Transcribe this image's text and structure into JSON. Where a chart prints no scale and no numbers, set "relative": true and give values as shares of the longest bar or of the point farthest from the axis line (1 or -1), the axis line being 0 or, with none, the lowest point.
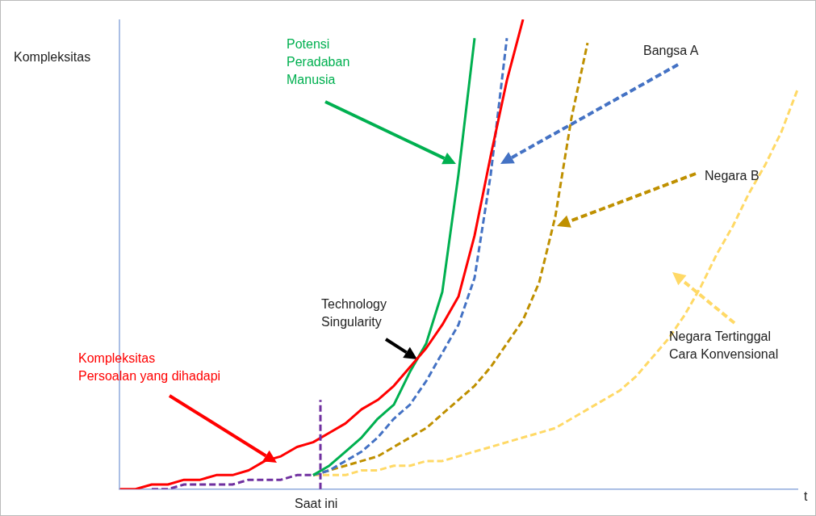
{
  "chart_data": {
    "type": "line",
    "relative": true,
    "xlabel": "t",
    "ylabel": "Kompleksitas",
    "marker": "none",
    "categories": [
      null,
      null,
      null,
      null,
      null,
      null,
      null,
      null,
      null,
      null,
      null,
      null,
      null,
      null,
      null,
      null,
      null,
      null,
      null,
      null,
      null,
      null,
      null,
      null,
      null,
      null,
      null,
      null,
      null,
      null,
      null,
      null,
      null,
      null,
      null,
      null,
      null,
      null,
      null,
      null,
      null,
      null,
      null
    ],
    "series": [
      {
        "name": "Kompleksitas Persoalan yang dihadapi",
        "color": "#ff0000",
        "line_style": "solid",
        "values": [
          0.0,
          0.0,
          0.01,
          0.01,
          0.02,
          0.02,
          0.03,
          0.03,
          0.04,
          0.06,
          0.07,
          0.09,
          0.1,
          0.12,
          0.14,
          0.17,
          0.19,
          0.22,
          0.26,
          0.3,
          0.35,
          0.41,
          0.54,
          0.71,
          0.87,
          1.0,
          null,
          null,
          null,
          null,
          null,
          null,
          null,
          null,
          null,
          null,
          null,
          null,
          null,
          null,
          null,
          null,
          null
        ]
      },
      {
        "name": "Potensi Peradaban Manusia",
        "color": "#00b050",
        "line_style": "solid",
        "values": [
          null,
          null,
          null,
          null,
          null,
          null,
          null,
          null,
          null,
          null,
          null,
          null,
          0.03,
          0.05,
          0.08,
          0.11,
          0.15,
          0.18,
          0.25,
          0.31,
          0.42,
          0.67,
          0.96,
          null,
          null,
          null,
          null,
          null,
          null,
          null,
          null,
          null,
          null,
          null,
          null,
          null,
          null,
          null,
          null,
          null,
          null,
          null,
          null
        ]
      },
      {
        "name": "Bangsa A",
        "color": "#4472c4",
        "line_style": "dashed",
        "values": [
          null,
          null,
          null,
          null,
          null,
          null,
          null,
          null,
          null,
          null,
          null,
          null,
          0.03,
          0.04,
          0.06,
          0.08,
          0.11,
          0.15,
          0.18,
          0.23,
          0.29,
          0.35,
          0.45,
          0.67,
          0.96,
          null,
          null,
          null,
          null,
          null,
          null,
          null,
          null,
          null,
          null,
          null,
          null,
          null,
          null,
          null,
          null,
          null,
          null
        ]
      },
      {
        "name": "Negara B",
        "color": "#bf9000",
        "line_style": "dashed",
        "values": [
          null,
          null,
          null,
          null,
          null,
          null,
          null,
          null,
          null,
          null,
          null,
          null,
          0.03,
          0.04,
          0.05,
          0.06,
          0.07,
          0.09,
          0.11,
          0.13,
          0.16,
          0.19,
          0.22,
          0.26,
          0.31,
          0.36,
          0.44,
          0.58,
          0.79,
          0.95,
          null,
          null,
          null,
          null,
          null,
          null,
          null,
          null,
          null,
          null,
          null,
          null,
          null
        ]
      },
      {
        "name": "Negara Tertinggal Cara Konvensional",
        "color": "#ffd966",
        "line_style": "dashed",
        "values": [
          null,
          null,
          null,
          null,
          null,
          null,
          null,
          null,
          null,
          null,
          null,
          null,
          0.03,
          0.03,
          0.03,
          0.04,
          0.04,
          0.05,
          0.05,
          0.06,
          0.06,
          0.07,
          0.08,
          0.09,
          0.1,
          0.11,
          0.12,
          0.13,
          0.15,
          0.17,
          0.19,
          0.21,
          0.24,
          0.28,
          0.32,
          0.37,
          0.43,
          0.5,
          0.56,
          0.63,
          0.69,
          0.76,
          0.85
        ]
      },
      {
        "color": "#7030a0",
        "line_style": "dashed",
        "values": [
          null,
          null,
          0.0,
          0.0,
          0.01,
          0.01,
          0.01,
          0.01,
          0.02,
          0.02,
          0.02,
          0.03,
          0.03,
          null,
          null,
          null,
          null,
          null,
          null,
          null,
          null,
          null,
          null,
          null,
          null,
          null,
          null,
          null,
          null,
          null,
          null,
          null,
          null,
          null,
          null,
          null,
          null,
          null,
          null,
          null,
          null,
          null,
          null
        ]
      }
    ],
    "annotations": [
      "Technology Singularity",
      "Saat ini"
    ]
  }
}
